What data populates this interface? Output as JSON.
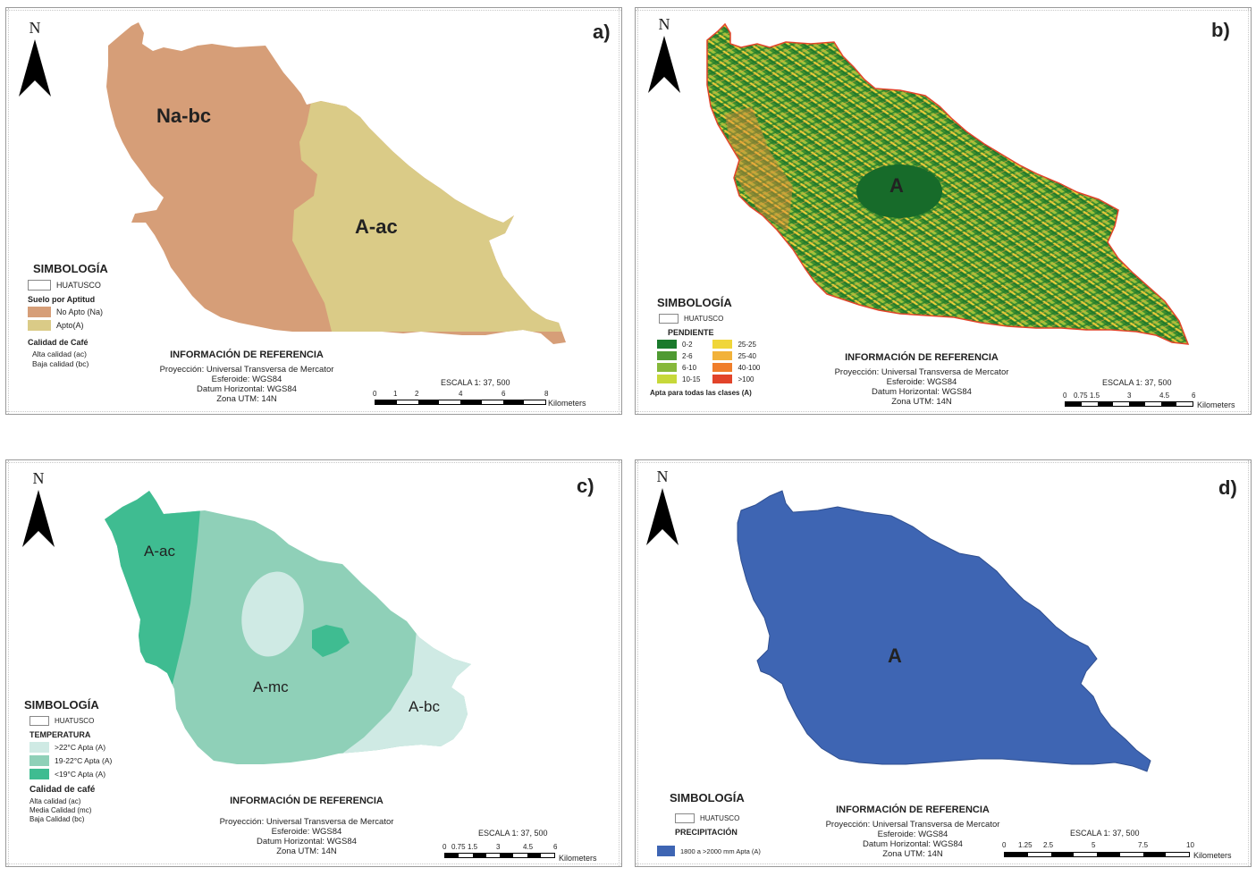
{
  "north_letter": "N",
  "panels": {
    "a": {
      "letter": "a)",
      "zones": {
        "left": "Na-bc",
        "right": "A-ac"
      },
      "legend": {
        "title": "SIMBOLOGÍA",
        "boundary": "HUATUSCO",
        "subtitle": "Suelo por Aptitud",
        "items": [
          {
            "label": "No Apto (Na)",
            "color": "#d69e78"
          },
          {
            "label": "Apto(A)",
            "color": "#dacb87"
          }
        ],
        "quality_title": "Calidad de Café",
        "quality_notes": [
          "Alta calidad (ac)",
          "Baja calidad (bc)"
        ]
      },
      "reference": {
        "title": "INFORMACIÓN DE REFERENCIA",
        "lines": [
          "Proyección: Universal Transversa de Mercator",
          "Esferoide: WGS84",
          "Datum Horizontal: WGS84",
          "Zona UTM: 14N"
        ]
      },
      "scale": {
        "title": "ESCALA 1: 37, 500",
        "ticks": [
          "0",
          "1",
          "2",
          "4",
          "6",
          "8"
        ],
        "unit": "Kilometers"
      }
    },
    "b": {
      "letter": "b)",
      "zone": "A",
      "legend": {
        "title": "SIMBOLOGÍA",
        "boundary": "HUATUSCO",
        "subtitle": "PENDIENTE",
        "items": [
          {
            "label": "0-2",
            "color": "#1a7a2c"
          },
          {
            "label": "25-25",
            "color": "#f0d63a"
          },
          {
            "label": "2-6",
            "color": "#4f9a32"
          },
          {
            "label": "25-40",
            "color": "#f2b23a"
          },
          {
            "label": "6-10",
            "color": "#86b83a"
          },
          {
            "label": "40-100",
            "color": "#f07e2a"
          },
          {
            "label": "10-15",
            "color": "#c7d83a"
          },
          {
            "label": ">100",
            "color": "#e2442a"
          }
        ],
        "footnote": "Apta para todas las clases (A)"
      },
      "reference": {
        "title": "INFORMACIÓN DE REFERENCIA",
        "lines": [
          "Proyección: Universal Transversa de Mercator",
          "Esferoide: WGS84",
          "Datum Horizontal: WGS84",
          "Zona UTM: 14N"
        ]
      },
      "scale": {
        "title": "ESCALA 1: 37, 500",
        "ticks": [
          "0",
          "0.75",
          "1.5",
          "3",
          "4.5",
          "6"
        ],
        "unit": "Kilometers"
      }
    },
    "c": {
      "letter": "c)",
      "zones": {
        "nw": "A-ac",
        "center": "A-mc",
        "se": "A-bc"
      },
      "legend": {
        "title": "SIMBOLOGÍA",
        "boundary": "HUATUSCO",
        "subtitle": "TEMPERATURA",
        "items": [
          {
            "label": ">22°C Apta (A)",
            "color": "#cfeae4"
          },
          {
            "label": "19-22°C Apta (A)",
            "color": "#8fd0b8"
          },
          {
            "label": "<19°C Apta (A)",
            "color": "#3fbc91"
          }
        ],
        "quality_title": "Calidad de café",
        "quality_notes": [
          "Alta calidad (ac)",
          "Media Calidad (mc)",
          "Baja Calidad (bc)"
        ]
      },
      "reference": {
        "title": "INFORMACIÓN DE REFERENCIA",
        "lines": [
          "Proyección: Universal Transversa de Mercator",
          "Esferoide: WGS84",
          "Datum Horizontal: WGS84",
          "Zona UTM: 14N"
        ]
      },
      "scale": {
        "title": "ESCALA 1: 37, 500",
        "ticks": [
          "0",
          "0.75",
          "1.5",
          "3",
          "4.5",
          "6"
        ],
        "unit": "Kilometers"
      }
    },
    "d": {
      "letter": "d)",
      "zone": "A",
      "legend": {
        "title": "SIMBOLOGÍA",
        "boundary": "HUATUSCO",
        "subtitle": "PRECIPITACIÓN",
        "items": [
          {
            "label": "1800 a >2000 mm Apta (A)",
            "color": "#3e65b3"
          }
        ]
      },
      "reference": {
        "title": "INFORMACIÓN DE REFERENCIA",
        "lines": [
          "Proyección: Universal Transversa de Mercator",
          "Esferoide: WGS84",
          "Datum Horizontal: WGS84",
          "Zona UTM: 14N"
        ]
      },
      "scale": {
        "title": "ESCALA 1: 37, 500",
        "ticks": [
          "0",
          "1.25",
          "2.5",
          "5",
          "7.5",
          "10"
        ],
        "unit": "Kilometers"
      }
    }
  }
}
